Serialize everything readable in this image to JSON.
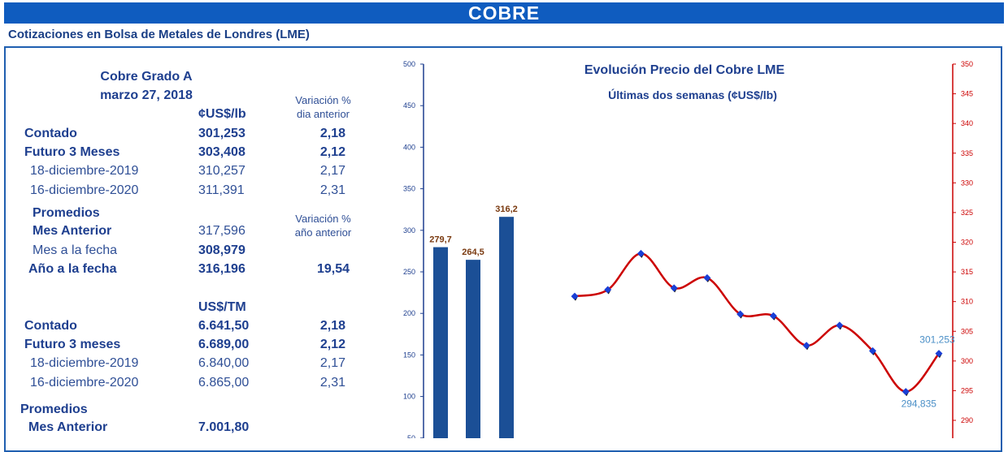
{
  "banner_title": "COBRE",
  "subtitle": "Cotizaciones en Bolsa de Metales de Londres (LME)",
  "table": {
    "title_line1": "Cobre Grado A",
    "title_line2": "marzo 27, 2018",
    "unit_lb": "¢US$/lb",
    "var_header_1a": "Variación %",
    "var_header_1b": "dia anterior",
    "rows_lb": [
      {
        "label": "Contado",
        "value": "301,253",
        "var": "2,18"
      },
      {
        "label": "Futuro 3 Meses",
        "value": "303,408",
        "var": "2,12"
      },
      {
        "label": "18-diciembre-2019",
        "value": "310,257",
        "var": "2,17"
      },
      {
        "label": "16-diciembre-2020",
        "value": "311,391",
        "var": "2,31"
      }
    ],
    "promedios_label": "Promedios",
    "var_header_2a": "Variación %",
    "var_header_2b": "año anterior",
    "prom_rows": [
      {
        "label": "Mes Anterior",
        "value": "317,596",
        "var": ""
      },
      {
        "label": "Mes a la fecha",
        "value": "308,979",
        "var": ""
      },
      {
        "label": "Año a la fecha",
        "value": "316,196",
        "var": "19,54"
      }
    ],
    "unit_tm": "US$/TM",
    "rows_tm": [
      {
        "label": "Contado",
        "value": "6.641,50",
        "var": "2,18"
      },
      {
        "label": "Futuro 3 meses",
        "value": "6.689,00",
        "var": "2,12"
      },
      {
        "label": "18-diciembre-2019",
        "value": "6.840,00",
        "var": "2,17"
      },
      {
        "label": "16-diciembre-2020",
        "value": "6.865,00",
        "var": "2,31"
      }
    ],
    "promedios2_label": "Promedios",
    "prom2_rows": [
      {
        "label": "Mes Anterior",
        "value": "7.001,80"
      }
    ]
  },
  "chart_data": [
    {
      "type": "bar",
      "categories": [
        "",
        "",
        ""
      ],
      "values": [
        279.7,
        264.5,
        316.2
      ],
      "data_labels": [
        "279,7",
        "264,5",
        "316,2"
      ],
      "ylim": [
        0,
        500
      ],
      "yticks": [
        50,
        100,
        150,
        200,
        250,
        300,
        350,
        400,
        450,
        500
      ],
      "bar_color": "#1b4f96",
      "label_color": "#7a3a10"
    },
    {
      "type": "line",
      "title": "Evolución Precio del Cobre LME",
      "subtitle": "Últimas dos semanas (¢US$/lb)",
      "series": [
        {
          "values": [
            310.9,
            312.0,
            318.1,
            312.3,
            314.0,
            307.9,
            307.6,
            302.6,
            306.0,
            301.7,
            294.835,
            301.253
          ]
        }
      ],
      "ylim": [
        288,
        350
      ],
      "yticks": [
        290,
        295,
        300,
        305,
        310,
        315,
        320,
        325,
        330,
        335,
        340,
        345,
        350
      ],
      "annotations": [
        {
          "index": 10,
          "text": "294,835"
        },
        {
          "index": 11,
          "text": "301,253"
        }
      ],
      "line_color": "#cc0000",
      "marker_color": "#1a3fd6",
      "axis_color": "#cc0000"
    }
  ]
}
